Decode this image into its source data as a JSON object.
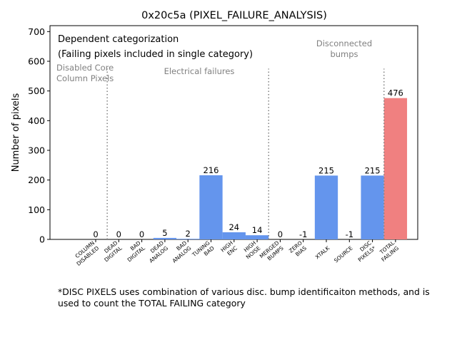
{
  "chart_data": {
    "type": "bar",
    "title": "0x20c5a (PIXEL_FAILURE_ANALYSIS)",
    "ylabel": "Number of pixels",
    "xlabel": "",
    "ylim": [
      0,
      720
    ],
    "yticks": [
      0,
      100,
      200,
      300,
      400,
      500,
      600,
      700
    ],
    "categories": [
      [
        "COLUMN",
        "DISABLED"
      ],
      [
        "DEAD",
        "DIGITAL"
      ],
      [
        "BAD",
        "DIGITAL"
      ],
      [
        "DEAD",
        "ANALOG"
      ],
      [
        "BAD",
        "ANALOG"
      ],
      [
        "TUNING",
        "BAD"
      ],
      [
        "HIGH",
        "ENC"
      ],
      [
        "HIGH",
        "NOISE"
      ],
      [
        "MERGED",
        "BUMPS"
      ],
      [
        "ZERO",
        "BIAS"
      ],
      [
        "XTALK"
      ],
      [
        "SOURCE"
      ],
      [
        "DISC",
        "PIXELS*"
      ],
      [
        "TOTAL",
        "FAILING"
      ]
    ],
    "values": [
      0,
      0,
      0,
      5,
      2,
      216,
      24,
      14,
      0,
      -1,
      215,
      -1,
      215,
      476
    ],
    "value_labels": [
      "0",
      "0",
      "0",
      "5",
      "2",
      "216",
      "24",
      "14",
      "0",
      "-1",
      "215",
      "-1",
      "215",
      "476"
    ],
    "bar_colors": [
      "#6495ed",
      "#6495ed",
      "#6495ed",
      "#6495ed",
      "#6495ed",
      "#6495ed",
      "#6495ed",
      "#6495ed",
      "#6495ed",
      "#6495ed",
      "#6495ed",
      "#6495ed",
      "#6495ed",
      "#f08080"
    ],
    "dividers_after_index": [
      0,
      7,
      12
    ],
    "divider_color": "#808080",
    "legend_text": [
      "Dependent categorization",
      "(Failing pixels included in single category)"
    ],
    "section_labels": [
      [
        "Disabled Core",
        "Column Pixels"
      ],
      [
        "Electrical failures"
      ],
      [
        "Disconnected",
        "bumps"
      ]
    ]
  },
  "footnote": "*DISC PIXELS uses combination of various disc. bump identificaiton methods, and is used to count the TOTAL FAILING category"
}
